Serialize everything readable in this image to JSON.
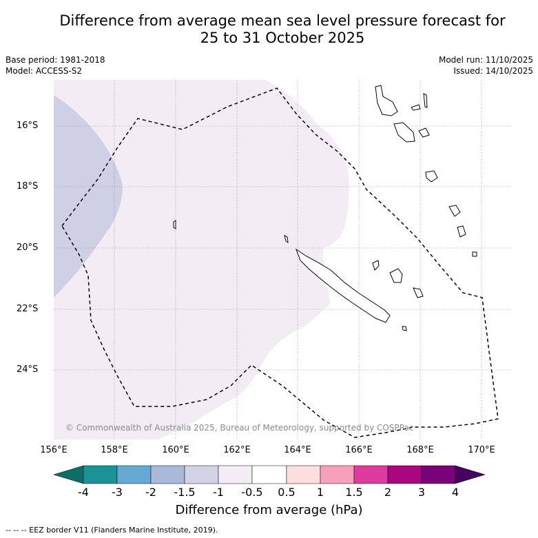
{
  "title": {
    "line1": "Difference from average mean sea level pressure forecast for",
    "line2": "25 to 31 October 2025"
  },
  "meta_left": {
    "base_period": "Base period: 1981-2018",
    "model": "Model: ACCESS-S2"
  },
  "meta_right": {
    "model_run": "Model run: 11/10/2025",
    "issued": "Issued: 14/10/2025"
  },
  "map": {
    "latitude_labels": [
      "16°S",
      "18°S",
      "20°S",
      "22°S",
      "24°S"
    ],
    "longitude_labels": [
      "156°E",
      "158°E",
      "160°E",
      "162°E",
      "164°E",
      "166°E",
      "168°E",
      "170°E"
    ],
    "copyright": "© Commonwealth of Australia 2025, Bureau of Meteorology, supported by COSPPac",
    "anomaly_regions": [
      {
        "category": "-1.5 to -1",
        "color": "#cfd0e5",
        "location": "western edge near 156-158°E"
      },
      {
        "category": "-1 to -0.5",
        "color": "#f3ecf5",
        "location": "western and central region"
      },
      {
        "category": "-0.5 to 0.5",
        "color": "#ffffff",
        "location": "eastern region"
      }
    ]
  },
  "colorbar": {
    "ticks": [
      "-4",
      "-3",
      "-2",
      "-1.5",
      "-1",
      "-0.5",
      "0.5",
      "1",
      "1.5",
      "2",
      "3",
      "4"
    ],
    "colors": [
      "#0c6e66",
      "#1b9296",
      "#66aad4",
      "#a9bad9",
      "#d3d3e8",
      "#f4edf6",
      "#ffffff",
      "#ffdedf",
      "#f8a0bb",
      "#dd3b9e",
      "#a9067f",
      "#7a0177",
      "#480060"
    ],
    "label": "Difference from average (hPa)"
  },
  "footer": "-- -- -- EEZ border V11 (Flanders Marine Institute, 2019)."
}
